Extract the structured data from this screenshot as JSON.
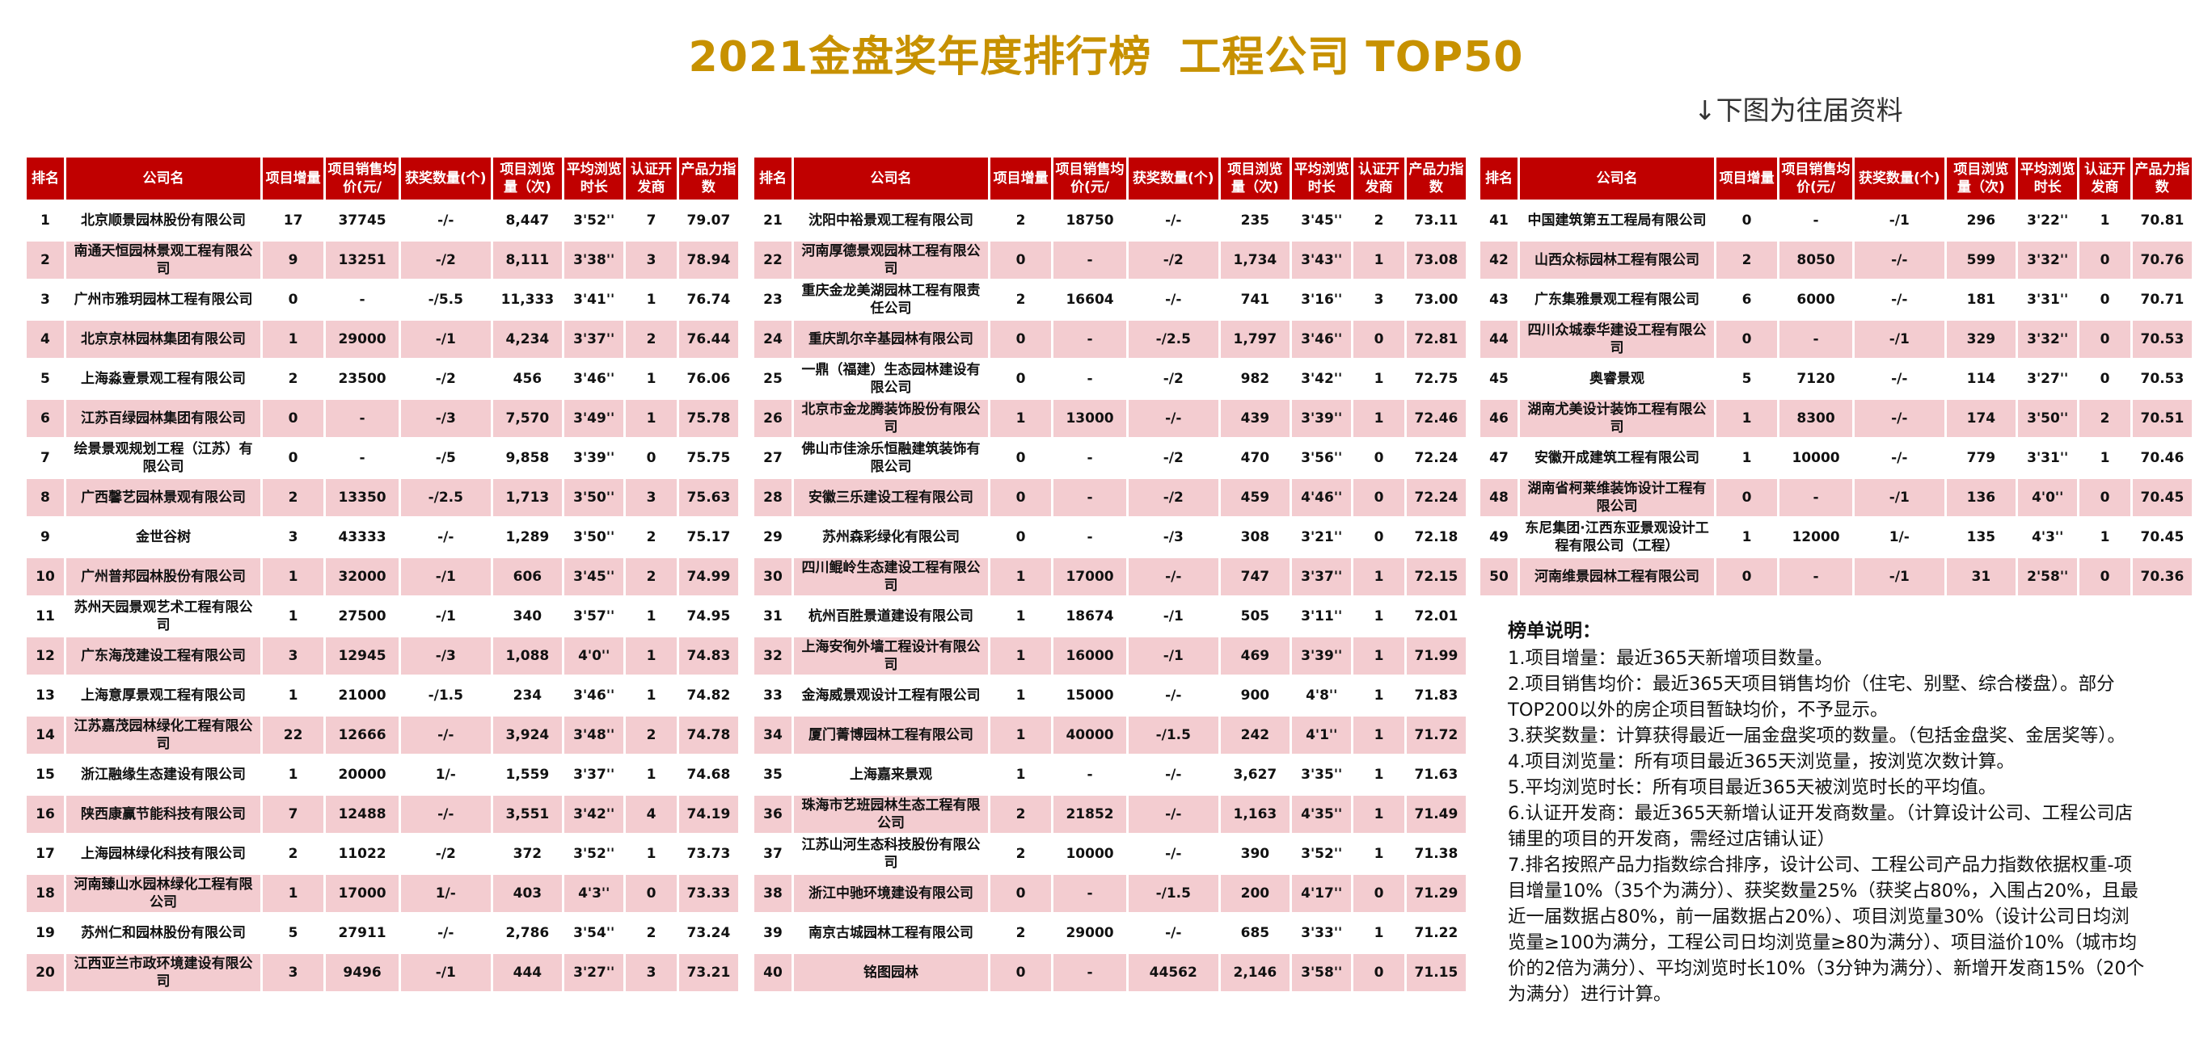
{
  "title": "2021金盘奖年度排行榜",
  "subtitle": "工程公司 TOP50",
  "prev_note": "↓下图为往届资料",
  "headers": [
    "排名",
    "公司名",
    "项目增量",
    "项目销售均价(元/",
    "获奖数量(个)",
    "项目浏览量（次)",
    "平均浏览时长",
    "认证开发商",
    "产品力指数"
  ],
  "tables": [
    [
      [
        "1",
        "北京顺景园林股份有限公司",
        "17",
        "37745",
        "-/-",
        "8,447",
        "3'52''",
        "7",
        "79.07"
      ],
      [
        "2",
        "南通天恒园林景观工程有限公司",
        "9",
        "13251",
        "-/2",
        "8,111",
        "3'38''",
        "3",
        "78.94"
      ],
      [
        "3",
        "广州市雅玥园林工程有限公司",
        "0",
        "-",
        "-/5.5",
        "11,333",
        "3'41''",
        "1",
        "76.74"
      ],
      [
        "4",
        "北京京林园林集团有限公司",
        "1",
        "29000",
        "-/1",
        "4,234",
        "3'37''",
        "2",
        "76.44"
      ],
      [
        "5",
        "上海淼壹景观工程有限公司",
        "2",
        "23500",
        "-/2",
        "456",
        "3'46''",
        "1",
        "76.06"
      ],
      [
        "6",
        "江苏百绿园林集团有限公司",
        "0",
        "-",
        "-/3",
        "7,570",
        "3'49''",
        "1",
        "75.78"
      ],
      [
        "7",
        "绘景景观规划工程（江苏）有限公司",
        "0",
        "-",
        "-/5",
        "9,858",
        "3'39''",
        "0",
        "75.75"
      ],
      [
        "8",
        "广西馨艺园林景观有限公司",
        "2",
        "13350",
        "-/2.5",
        "1,713",
        "3'50''",
        "3",
        "75.63"
      ],
      [
        "9",
        "金世谷树",
        "3",
        "43333",
        "-/-",
        "1,289",
        "3'50''",
        "2",
        "75.17"
      ],
      [
        "10",
        "广州普邦园林股份有限公司",
        "1",
        "32000",
        "-/1",
        "606",
        "3'45''",
        "2",
        "74.99"
      ],
      [
        "11",
        "苏州天园景观艺术工程有限公司",
        "1",
        "27500",
        "-/1",
        "340",
        "3'57''",
        "1",
        "74.95"
      ],
      [
        "12",
        "广东海茂建设工程有限公司",
        "3",
        "12945",
        "-/3",
        "1,088",
        "4'0''",
        "1",
        "74.83"
      ],
      [
        "13",
        "上海意厚景观工程有限公司",
        "1",
        "21000",
        "-/1.5",
        "234",
        "3'46''",
        "1",
        "74.82"
      ],
      [
        "14",
        "江苏嘉茂园林绿化工程有限公司",
        "22",
        "12666",
        "-/-",
        "3,924",
        "3'48''",
        "2",
        "74.78"
      ],
      [
        "15",
        "浙江融缘生态建设有限公司",
        "1",
        "20000",
        "1/-",
        "1,559",
        "3'37''",
        "1",
        "74.68"
      ],
      [
        "16",
        "陕西康赢节能科技有限公司",
        "7",
        "12488",
        "-/-",
        "3,551",
        "3'42''",
        "4",
        "74.19"
      ],
      [
        "17",
        "上海园林绿化科技有限公司",
        "2",
        "11022",
        "-/2",
        "372",
        "3'52''",
        "1",
        "73.73"
      ],
      [
        "18",
        "河南臻山水园林绿化工程有限公司",
        "1",
        "17000",
        "1/-",
        "403",
        "4'3''",
        "0",
        "73.33"
      ],
      [
        "19",
        "苏州仁和园林股份有限公司",
        "5",
        "27911",
        "-/-",
        "2,786",
        "3'54''",
        "2",
        "73.24"
      ],
      [
        "20",
        "江西亚兰市政环境建设有限公司",
        "3",
        "9496",
        "-/1",
        "444",
        "3'27''",
        "3",
        "73.21"
      ]
    ],
    [
      [
        "21",
        "沈阳中裕景观工程有限公司",
        "2",
        "18750",
        "-/-",
        "235",
        "3'45''",
        "2",
        "73.11"
      ],
      [
        "22",
        "河南厚德景观园林工程有限公司",
        "0",
        "-",
        "-/2",
        "1,734",
        "3'43''",
        "1",
        "73.08"
      ],
      [
        "23",
        "重庆金龙美湖园林工程有限责任公司",
        "2",
        "16604",
        "-/-",
        "741",
        "3'16''",
        "3",
        "73.00"
      ],
      [
        "24",
        "重庆凯尔辛基园林有限公司",
        "0",
        "-",
        "-/2.5",
        "1,797",
        "3'46''",
        "0",
        "72.81"
      ],
      [
        "25",
        "一鼎（福建）生态园林建设有限公司",
        "0",
        "-",
        "-/2",
        "982",
        "3'42''",
        "1",
        "72.75"
      ],
      [
        "26",
        "北京市金龙腾装饰股份有限公司",
        "1",
        "13000",
        "-/-",
        "439",
        "3'39''",
        "1",
        "72.46"
      ],
      [
        "27",
        "佛山市佳涂乐恒融建筑装饰有限公司",
        "0",
        "-",
        "-/2",
        "470",
        "3'56''",
        "0",
        "72.24"
      ],
      [
        "28",
        "安徽三乐建设工程有限公司",
        "0",
        "-",
        "-/2",
        "459",
        "4'46''",
        "0",
        "72.24"
      ],
      [
        "29",
        "苏州森彩绿化有限公司",
        "0",
        "-",
        "-/3",
        "308",
        "3'21''",
        "0",
        "72.18"
      ],
      [
        "30",
        "四川鲲岭生态建设工程有限公司",
        "1",
        "17000",
        "-/-",
        "747",
        "3'37''",
        "1",
        "72.15"
      ],
      [
        "31",
        "杭州百胜景道建设有限公司",
        "1",
        "18674",
        "-/1",
        "505",
        "3'11''",
        "1",
        "72.01"
      ],
      [
        "32",
        "上海安徇外墙工程设计有限公司",
        "1",
        "16000",
        "-/1",
        "469",
        "3'39''",
        "1",
        "71.99"
      ],
      [
        "33",
        "金海威景观设计工程有限公司",
        "1",
        "15000",
        "-/-",
        "900",
        "4'8''",
        "1",
        "71.83"
      ],
      [
        "34",
        "厦门菁博园林工程有限公司",
        "1",
        "40000",
        "-/1.5",
        "242",
        "4'1''",
        "1",
        "71.72"
      ],
      [
        "35",
        "上海嘉来景观",
        "1",
        "-",
        "-/-",
        "3,627",
        "3'35''",
        "1",
        "71.63"
      ],
      [
        "36",
        "珠海市艺班园林生态工程有限公司",
        "2",
        "21852",
        "-/-",
        "1,163",
        "4'35''",
        "1",
        "71.49"
      ],
      [
        "37",
        "江苏山河生态科技股份有限公司",
        "2",
        "10000",
        "-/-",
        "390",
        "3'52''",
        "1",
        "71.38"
      ],
      [
        "38",
        "浙江中驰环境建设有限公司",
        "0",
        "-",
        "-/1.5",
        "200",
        "4'17''",
        "0",
        "71.29"
      ],
      [
        "39",
        "南京古城园林工程有限公司",
        "2",
        "29000",
        "-/-",
        "685",
        "3'33''",
        "1",
        "71.22"
      ],
      [
        "40",
        "铭图园林",
        "0",
        "-",
        "44562",
        "2,146",
        "3'58''",
        "0",
        "71.15"
      ]
    ],
    [
      [
        "41",
        "中国建筑第五工程局有限公司",
        "0",
        "-",
        "-/1",
        "296",
        "3'22''",
        "1",
        "70.81"
      ],
      [
        "42",
        "山西众标园林工程有限公司",
        "2",
        "8050",
        "-/-",
        "599",
        "3'32''",
        "0",
        "70.76"
      ],
      [
        "43",
        "广东集雅景观工程有限公司",
        "6",
        "6000",
        "-/-",
        "181",
        "3'31''",
        "0",
        "70.71"
      ],
      [
        "44",
        "四川众城泰华建设工程有限公司",
        "0",
        "-",
        "-/1",
        "329",
        "3'32''",
        "0",
        "70.53"
      ],
      [
        "45",
        "奥睿景观",
        "5",
        "7120",
        "-/-",
        "114",
        "3'27''",
        "0",
        "70.53"
      ],
      [
        "46",
        "湖南尤美设计装饰工程有限公司",
        "1",
        "8300",
        "-/-",
        "174",
        "3'50''",
        "2",
        "70.51"
      ],
      [
        "47",
        "安徽开成建筑工程有限公司",
        "1",
        "10000",
        "-/-",
        "779",
        "3'31''",
        "1",
        "70.46"
      ],
      [
        "48",
        "湖南省柯莱维装饰设计工程有限公司",
        "0",
        "-",
        "-/1",
        "136",
        "4'0''",
        "0",
        "70.45"
      ],
      [
        "49",
        "东尼集团·江西东亚景观设计工程有限公司（工程）",
        "1",
        "12000",
        "1/-",
        "135",
        "4'3''",
        "1",
        "70.45"
      ],
      [
        "50",
        "河南维景园林工程有限公司",
        "0",
        "-",
        "-/1",
        "31",
        "2'58''",
        "0",
        "70.36"
      ]
    ]
  ],
  "legend": {
    "heading": "榜单说明：",
    "items": [
      "1.项目增量：最近365天新增项目数量。",
      "2.项目销售均价：最近365天项目销售均价（住宅、别墅、综合楼盘）。部分TOP200以外的房企项目暂缺均价，不予显示。",
      "3.获奖数量：计算获得最近一届金盘奖项的数量。（包括金盘奖、金居奖等）。",
      "4.项目浏览量：所有项目最近365天浏览量，按浏览次数计算。",
      "5.平均浏览时长：所有项目最近365天被浏览时长的平均值。",
      "6.认证开发商：最近365天新增认证开发商数量。（计算设计公司、工程公司店铺里的项目的开发商，需经过店铺认证）",
      "7.排名按照产品力指数综合排序，设计公司、工程公司产品力指数依据权重-项目增量10%（35个为满分）、获奖数量25%（获奖占80%，入围占20%，且最近一届数据占80%，前一届数据占20%）、项目浏览量30%（设计公司日均浏览量≥100为满分，工程公司日均浏览量≥80为满分）、项目溢价10%（城市均价的2倍为满分）、平均浏览时长10%（3分钟为满分）、新增开发商15%（20个为满分）进行计算。"
    ]
  },
  "colors": {
    "header_bg": "#c00000",
    "title": "#c79100",
    "row_alt": "#f3ccd0"
  }
}
